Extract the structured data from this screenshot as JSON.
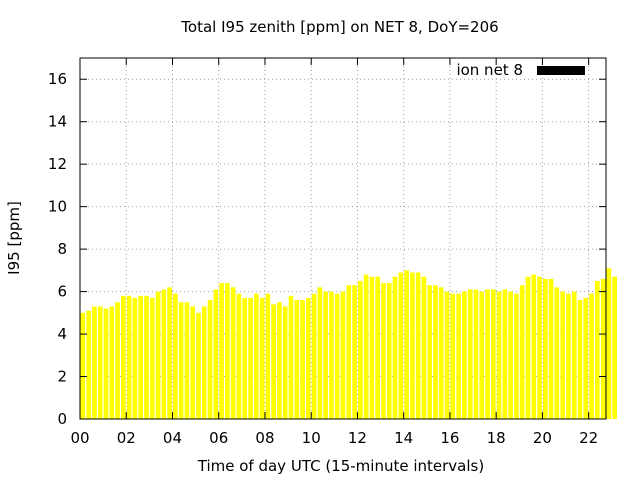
{
  "chart_data": {
    "type": "bar",
    "title": "Total I95 zenith [ppm] on NET 8, DoY=206",
    "xlabel": "Time of day UTC (15-minute intervals)",
    "ylabel": "I95 [ppm]",
    "xlim": [
      0,
      22.75
    ],
    "ylim": [
      0,
      17
    ],
    "xticks": [
      "00",
      "02",
      "04",
      "06",
      "08",
      "10",
      "12",
      "14",
      "16",
      "18",
      "20",
      "22"
    ],
    "yticks": [
      "0",
      "2",
      "4",
      "6",
      "8",
      "10",
      "12",
      "14",
      "16"
    ],
    "grid": true,
    "legend_position": "top-right",
    "series": [
      {
        "name": "ion net 8",
        "color": "#ffff00",
        "legend_color": "#000000",
        "bar_interval_hours": 0.25,
        "values": [
          5.0,
          5.1,
          5.3,
          5.3,
          5.2,
          5.3,
          5.5,
          5.8,
          5.8,
          5.7,
          5.8,
          5.8,
          5.7,
          6.0,
          6.1,
          6.2,
          5.9,
          5.5,
          5.5,
          5.3,
          5.0,
          5.3,
          5.6,
          6.1,
          6.4,
          6.4,
          6.2,
          5.9,
          5.7,
          5.7,
          5.9,
          5.7,
          5.9,
          5.4,
          5.5,
          5.3,
          5.8,
          5.6,
          5.6,
          5.7,
          5.9,
          6.2,
          6.0,
          6.0,
          5.9,
          6.0,
          6.3,
          6.3,
          6.5,
          6.8,
          6.7,
          6.7,
          6.4,
          6.4,
          6.7,
          6.9,
          7.0,
          6.9,
          6.9,
          6.7,
          6.3,
          6.3,
          6.2,
          6.0,
          5.9,
          5.9,
          6.0,
          6.1,
          6.1,
          6.0,
          6.1,
          6.1,
          6.0,
          6.1,
          6.0,
          5.9,
          6.3,
          6.7,
          6.8,
          6.7,
          6.6,
          6.6,
          6.2,
          6.0,
          5.9,
          6.0,
          5.6,
          5.7,
          5.9,
          6.5,
          6.6,
          7.1,
          6.7
        ]
      }
    ]
  }
}
